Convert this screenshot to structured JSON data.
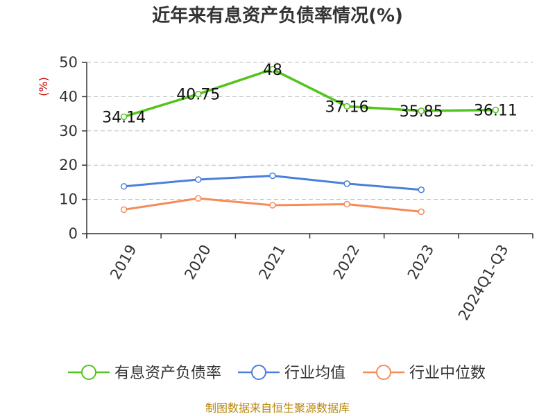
{
  "chart_data": {
    "type": "line",
    "title": "近年来有息资产负债率情况(%)",
    "ylabel": "(%)",
    "categories": [
      "2019",
      "2020",
      "2021",
      "2022",
      "2023",
      "2024Q1-Q3"
    ],
    "ylim": [
      0,
      50
    ],
    "yticks": [
      0,
      10,
      20,
      30,
      40,
      50
    ],
    "grid": true,
    "legend_position": "bottom",
    "series": [
      {
        "name": "有息资产负债率",
        "color": "#52c41a",
        "values": [
          34.14,
          40.75,
          48,
          37.16,
          35.85,
          36.11
        ],
        "show_labels": true
      },
      {
        "name": "行业均值",
        "color": "#4a7fdb",
        "values": [
          13.8,
          15.8,
          16.9,
          14.6,
          12.8,
          null
        ],
        "show_labels": false
      },
      {
        "name": "行业中位数",
        "color": "#f68b5a",
        "values": [
          7.0,
          10.3,
          8.3,
          8.6,
          6.4,
          null
        ],
        "show_labels": false
      }
    ]
  },
  "source": "制图数据来自恒生聚源数据库"
}
